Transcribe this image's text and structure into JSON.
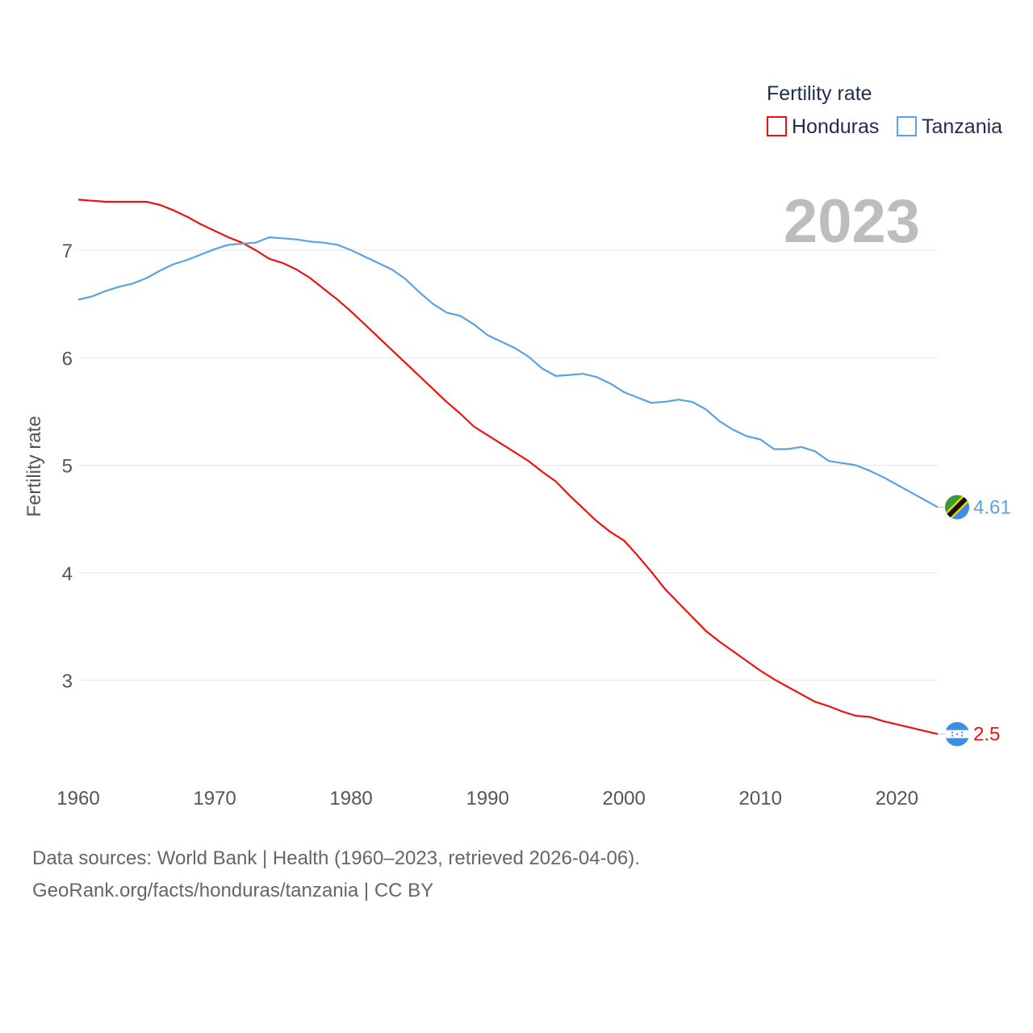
{
  "chart_data": {
    "type": "line",
    "title": "",
    "xlabel": "",
    "ylabel": "Fertility rate",
    "xlim": [
      1960,
      2023
    ],
    "ylim": [
      2.0,
      7.7
    ],
    "yticks": [
      3,
      4,
      5,
      6,
      7
    ],
    "xticks": [
      1960,
      1970,
      1980,
      1990,
      2000,
      2010,
      2020
    ],
    "grid": true,
    "year_label": "2023",
    "legend": {
      "title": "Fertility rate",
      "position": "top-right"
    },
    "x": [
      1960,
      1961,
      1962,
      1963,
      1964,
      1965,
      1966,
      1967,
      1968,
      1969,
      1970,
      1971,
      1972,
      1973,
      1974,
      1975,
      1976,
      1977,
      1978,
      1979,
      1980,
      1981,
      1982,
      1983,
      1984,
      1985,
      1986,
      1987,
      1988,
      1989,
      1990,
      1991,
      1992,
      1993,
      1994,
      1995,
      1996,
      1997,
      1998,
      1999,
      2000,
      2001,
      2002,
      2003,
      2004,
      2005,
      2006,
      2007,
      2008,
      2009,
      2010,
      2011,
      2012,
      2013,
      2014,
      2015,
      2016,
      2017,
      2018,
      2019,
      2020,
      2021,
      2022,
      2023
    ],
    "series": [
      {
        "name": "Honduras",
        "color": "#ee1111",
        "end_label": "2.5",
        "flag": "honduras-flag",
        "values": [
          7.47,
          7.46,
          7.45,
          7.45,
          7.45,
          7.45,
          7.42,
          7.37,
          7.31,
          7.24,
          7.18,
          7.12,
          7.07,
          7.0,
          6.92,
          6.88,
          6.82,
          6.74,
          6.64,
          6.54,
          6.43,
          6.31,
          6.19,
          6.07,
          5.95,
          5.83,
          5.71,
          5.59,
          5.48,
          5.36,
          5.28,
          5.2,
          5.12,
          5.04,
          4.94,
          4.85,
          4.72,
          4.6,
          4.48,
          4.38,
          4.3,
          4.16,
          4.01,
          3.85,
          3.72,
          3.59,
          3.46,
          3.36,
          3.27,
          3.18,
          3.09,
          3.01,
          2.94,
          2.87,
          2.8,
          2.76,
          2.71,
          2.67,
          2.66,
          2.62,
          2.59,
          2.56,
          2.53,
          2.5
        ]
      },
      {
        "name": "Tanzania",
        "color": "#5aa2e6",
        "end_label": "4.61",
        "flag": "tanzania-flag",
        "values": [
          6.54,
          6.57,
          6.62,
          6.66,
          6.69,
          6.74,
          6.81,
          6.87,
          6.91,
          6.96,
          7.01,
          7.05,
          7.06,
          7.07,
          7.12,
          7.11,
          7.1,
          7.08,
          7.07,
          7.05,
          7.0,
          6.94,
          6.88,
          6.82,
          6.73,
          6.61,
          6.5,
          6.42,
          6.39,
          6.31,
          6.21,
          6.15,
          6.09,
          6.01,
          5.9,
          5.83,
          5.84,
          5.85,
          5.82,
          5.76,
          5.68,
          5.63,
          5.58,
          5.59,
          5.61,
          5.59,
          5.52,
          5.41,
          5.33,
          5.27,
          5.24,
          5.15,
          5.15,
          5.17,
          5.13,
          5.04,
          5.02,
          5.0,
          4.95,
          4.89,
          4.82,
          4.75,
          4.68,
          4.61
        ]
      }
    ]
  },
  "footer": {
    "line1": "Data sources: World Bank | Health (1960–2023, retrieved 2026-04-06).",
    "line2": "GeoRank.org/facts/honduras/tanzania | CC BY"
  }
}
